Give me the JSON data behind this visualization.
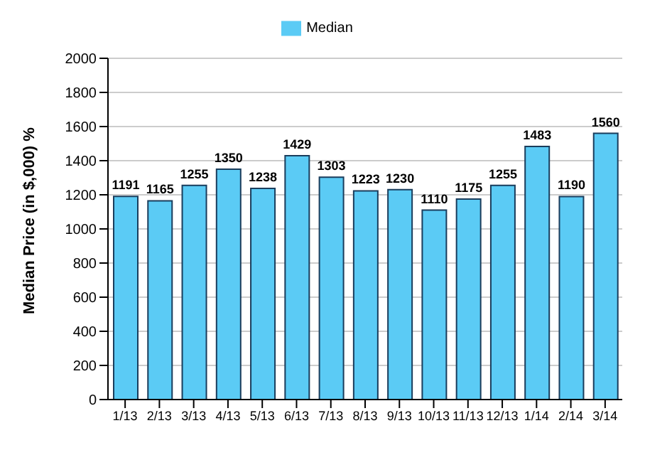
{
  "chart_data": {
    "type": "bar",
    "ylabel": "Median Price (in $,000) %",
    "categories": [
      "1/13",
      "2/13",
      "3/13",
      "4/13",
      "5/13",
      "6/13",
      "7/13",
      "8/13",
      "9/13",
      "10/13",
      "11/13",
      "12/13",
      "1/14",
      "2/14",
      "3/14"
    ],
    "series": [
      {
        "name": "Median",
        "color": "#5bcbf5",
        "values": [
          1191,
          1165,
          1255,
          1350,
          1238,
          1429,
          1303,
          1223,
          1230,
          1110,
          1175,
          1255,
          1483,
          1190,
          1560
        ]
      }
    ],
    "ylim": [
      0,
      2000
    ],
    "yticks": [
      0,
      200,
      400,
      600,
      800,
      1000,
      1200,
      1400,
      1600,
      1800,
      2000
    ],
    "grid": "y",
    "legend": "top",
    "data_labels": true
  }
}
